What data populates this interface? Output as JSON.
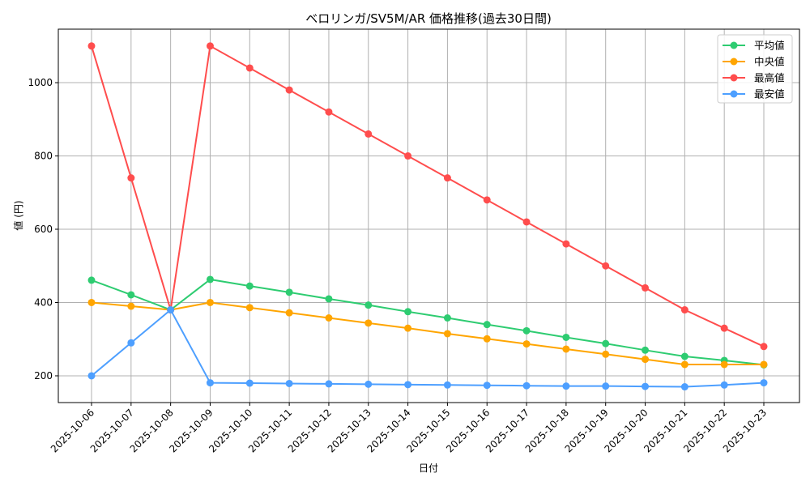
{
  "chart_data": {
    "type": "line",
    "title": "ベロリンガ/SV5M/AR 価格推移(過去30日間)",
    "xlabel": "日付",
    "ylabel": "値 (円)",
    "ylim": [
      127,
      1146
    ],
    "yticks": [
      200,
      400,
      600,
      800,
      1000
    ],
    "grid": true,
    "legend_position": "upper right",
    "categories": [
      "2025-10-06",
      "2025-10-07",
      "2025-10-08",
      "2025-10-09",
      "2025-10-10",
      "2025-10-11",
      "2025-10-12",
      "2025-10-13",
      "2025-10-14",
      "2025-10-15",
      "2025-10-16",
      "2025-10-17",
      "2025-10-18",
      "2025-10-19",
      "2025-10-20",
      "2025-10-21",
      "2025-10-22",
      "2025-10-23"
    ],
    "series": [
      {
        "name": "平均値",
        "color": "#2ecc71",
        "values": [
          461,
          421,
          380,
          463,
          445,
          428,
          410,
          393,
          375,
          358,
          340,
          323,
          305,
          288,
          270,
          253,
          242,
          230
        ]
      },
      {
        "name": "中央値",
        "color": "#ffa500",
        "values": [
          400,
          390,
          380,
          400,
          386,
          372,
          358,
          344,
          330,
          315,
          301,
          287,
          273,
          259,
          245,
          231,
          231,
          231
        ]
      },
      {
        "name": "最高値",
        "color": "#ff4d4d",
        "values": [
          1100,
          740,
          380,
          1100,
          1040,
          980,
          920,
          860,
          800,
          740,
          680,
          620,
          560,
          500,
          440,
          380,
          330,
          280
        ]
      },
      {
        "name": "最安値",
        "color": "#4d9fff",
        "values": [
          200,
          290,
          380,
          181,
          180,
          179,
          178,
          177,
          176,
          175,
          174,
          173,
          172,
          172,
          171,
          170,
          175,
          181
        ]
      }
    ]
  }
}
